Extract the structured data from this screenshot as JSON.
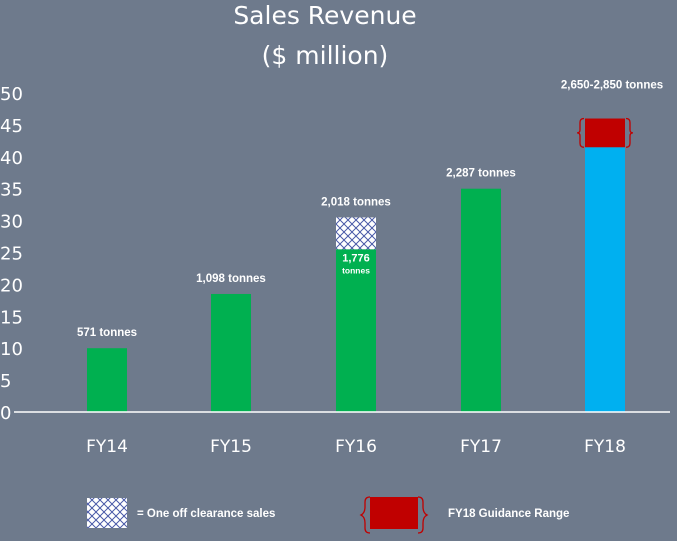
{
  "chart_data": {
    "type": "bar",
    "title": "Sales Revenue",
    "subtitle": "($ million)",
    "categories": [
      "FY14",
      "FY15",
      "FY16",
      "FY17",
      "FY18"
    ],
    "values": [
      10,
      18.5,
      25.5,
      35,
      41.5
    ],
    "clearance_top": 30.5,
    "guidance_range": [
      41.5,
      46
    ],
    "data_labels": [
      "571 tonnes",
      "1,098 tonnes",
      "2,018 tonnes",
      "2,287 tonnes",
      "2,650-2,850 tonnes"
    ],
    "inner_label": {
      "value": "1,776",
      "unit": "tonnes"
    },
    "ylim": [
      0,
      50
    ],
    "yticks": [
      0,
      5,
      10,
      15,
      20,
      25,
      30,
      35,
      40,
      45,
      50
    ],
    "grid": false,
    "legend": [
      {
        "label": "= One off clearance sales",
        "pattern": "crosshatch"
      },
      {
        "label": "FY18 Guidance Range",
        "color": "#c00000"
      }
    ],
    "legend_position": "bottom",
    "colors": {
      "bar": "#00b050",
      "fy18": "#00b0f0",
      "guidance": "#c00000",
      "background": "#6e7a8c"
    }
  }
}
